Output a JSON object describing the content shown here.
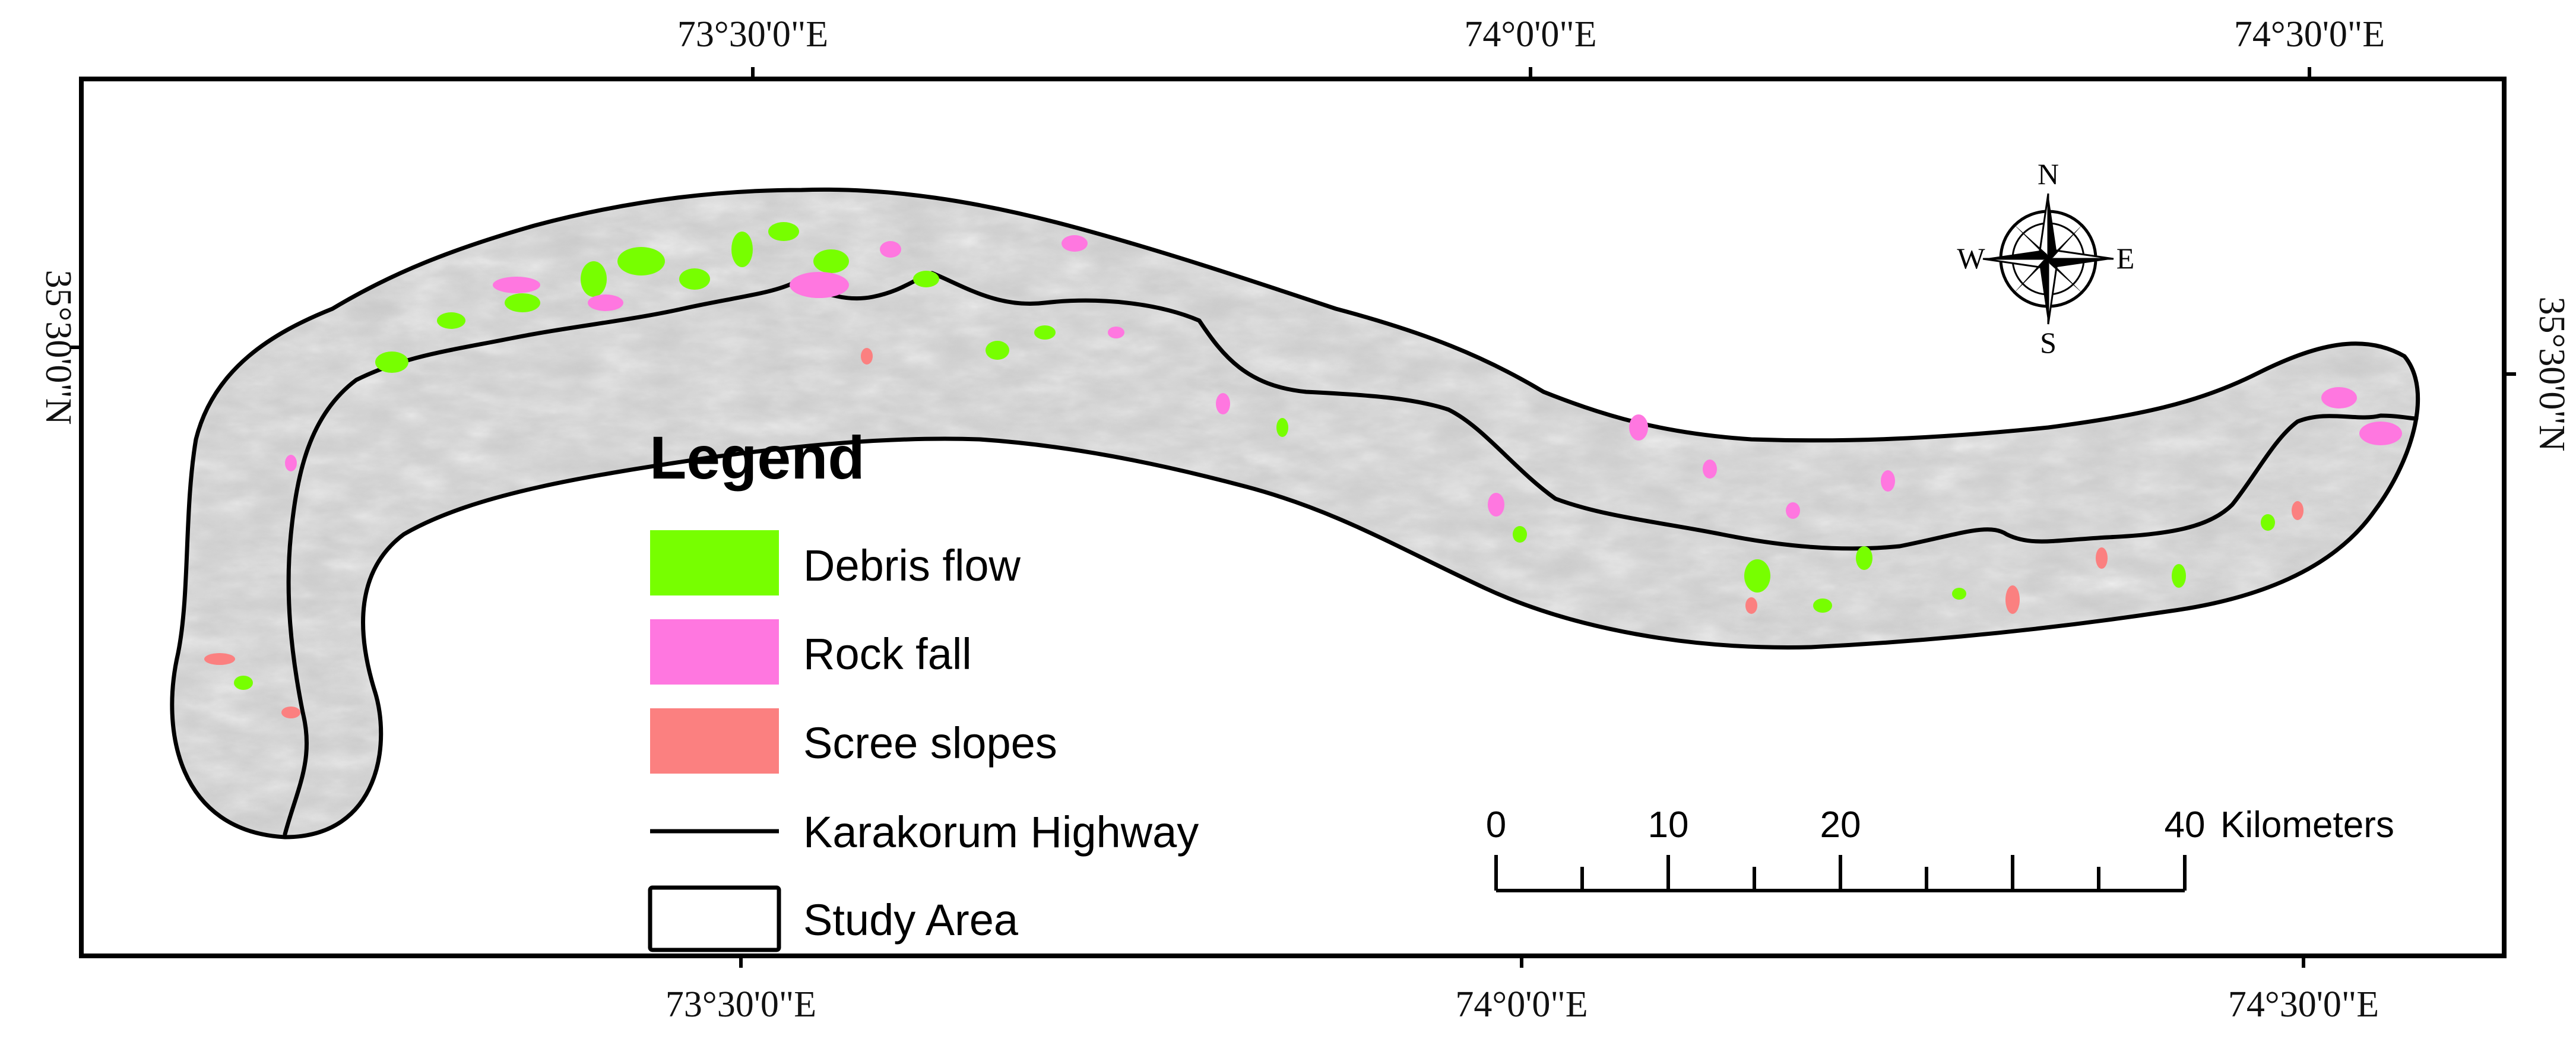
{
  "graticule": {
    "top": [
      "73°30'0\"E",
      "74°0'0\"E",
      "74°30'0\"E"
    ],
    "bottom": [
      "73°30'0\"E",
      "74°0'0\"E",
      "74°30'0\"E"
    ],
    "left": "35°30'0\"N",
    "right": "35°30'0\"N"
  },
  "legend": {
    "title": "Legend",
    "items": [
      {
        "label": "Debris flow",
        "color": "#77ff00"
      },
      {
        "label": "Rock fall",
        "color": "#ff77e0"
      },
      {
        "label": "Scree slopes",
        "color": "#fb8080"
      },
      {
        "label": "Karakorum Highway",
        "color": "#000000"
      },
      {
        "label": "Study Area",
        "color": "#ffffff"
      }
    ]
  },
  "scale_bar": {
    "ticks": [
      "0",
      "10",
      "20",
      "40"
    ],
    "unit": "Kilometers"
  },
  "north_arrow": {
    "n": "N",
    "s": "S",
    "e": "E",
    "w": "W"
  },
  "colors": {
    "study_area_fill": "#c9c9c9",
    "outline": "#000000"
  }
}
